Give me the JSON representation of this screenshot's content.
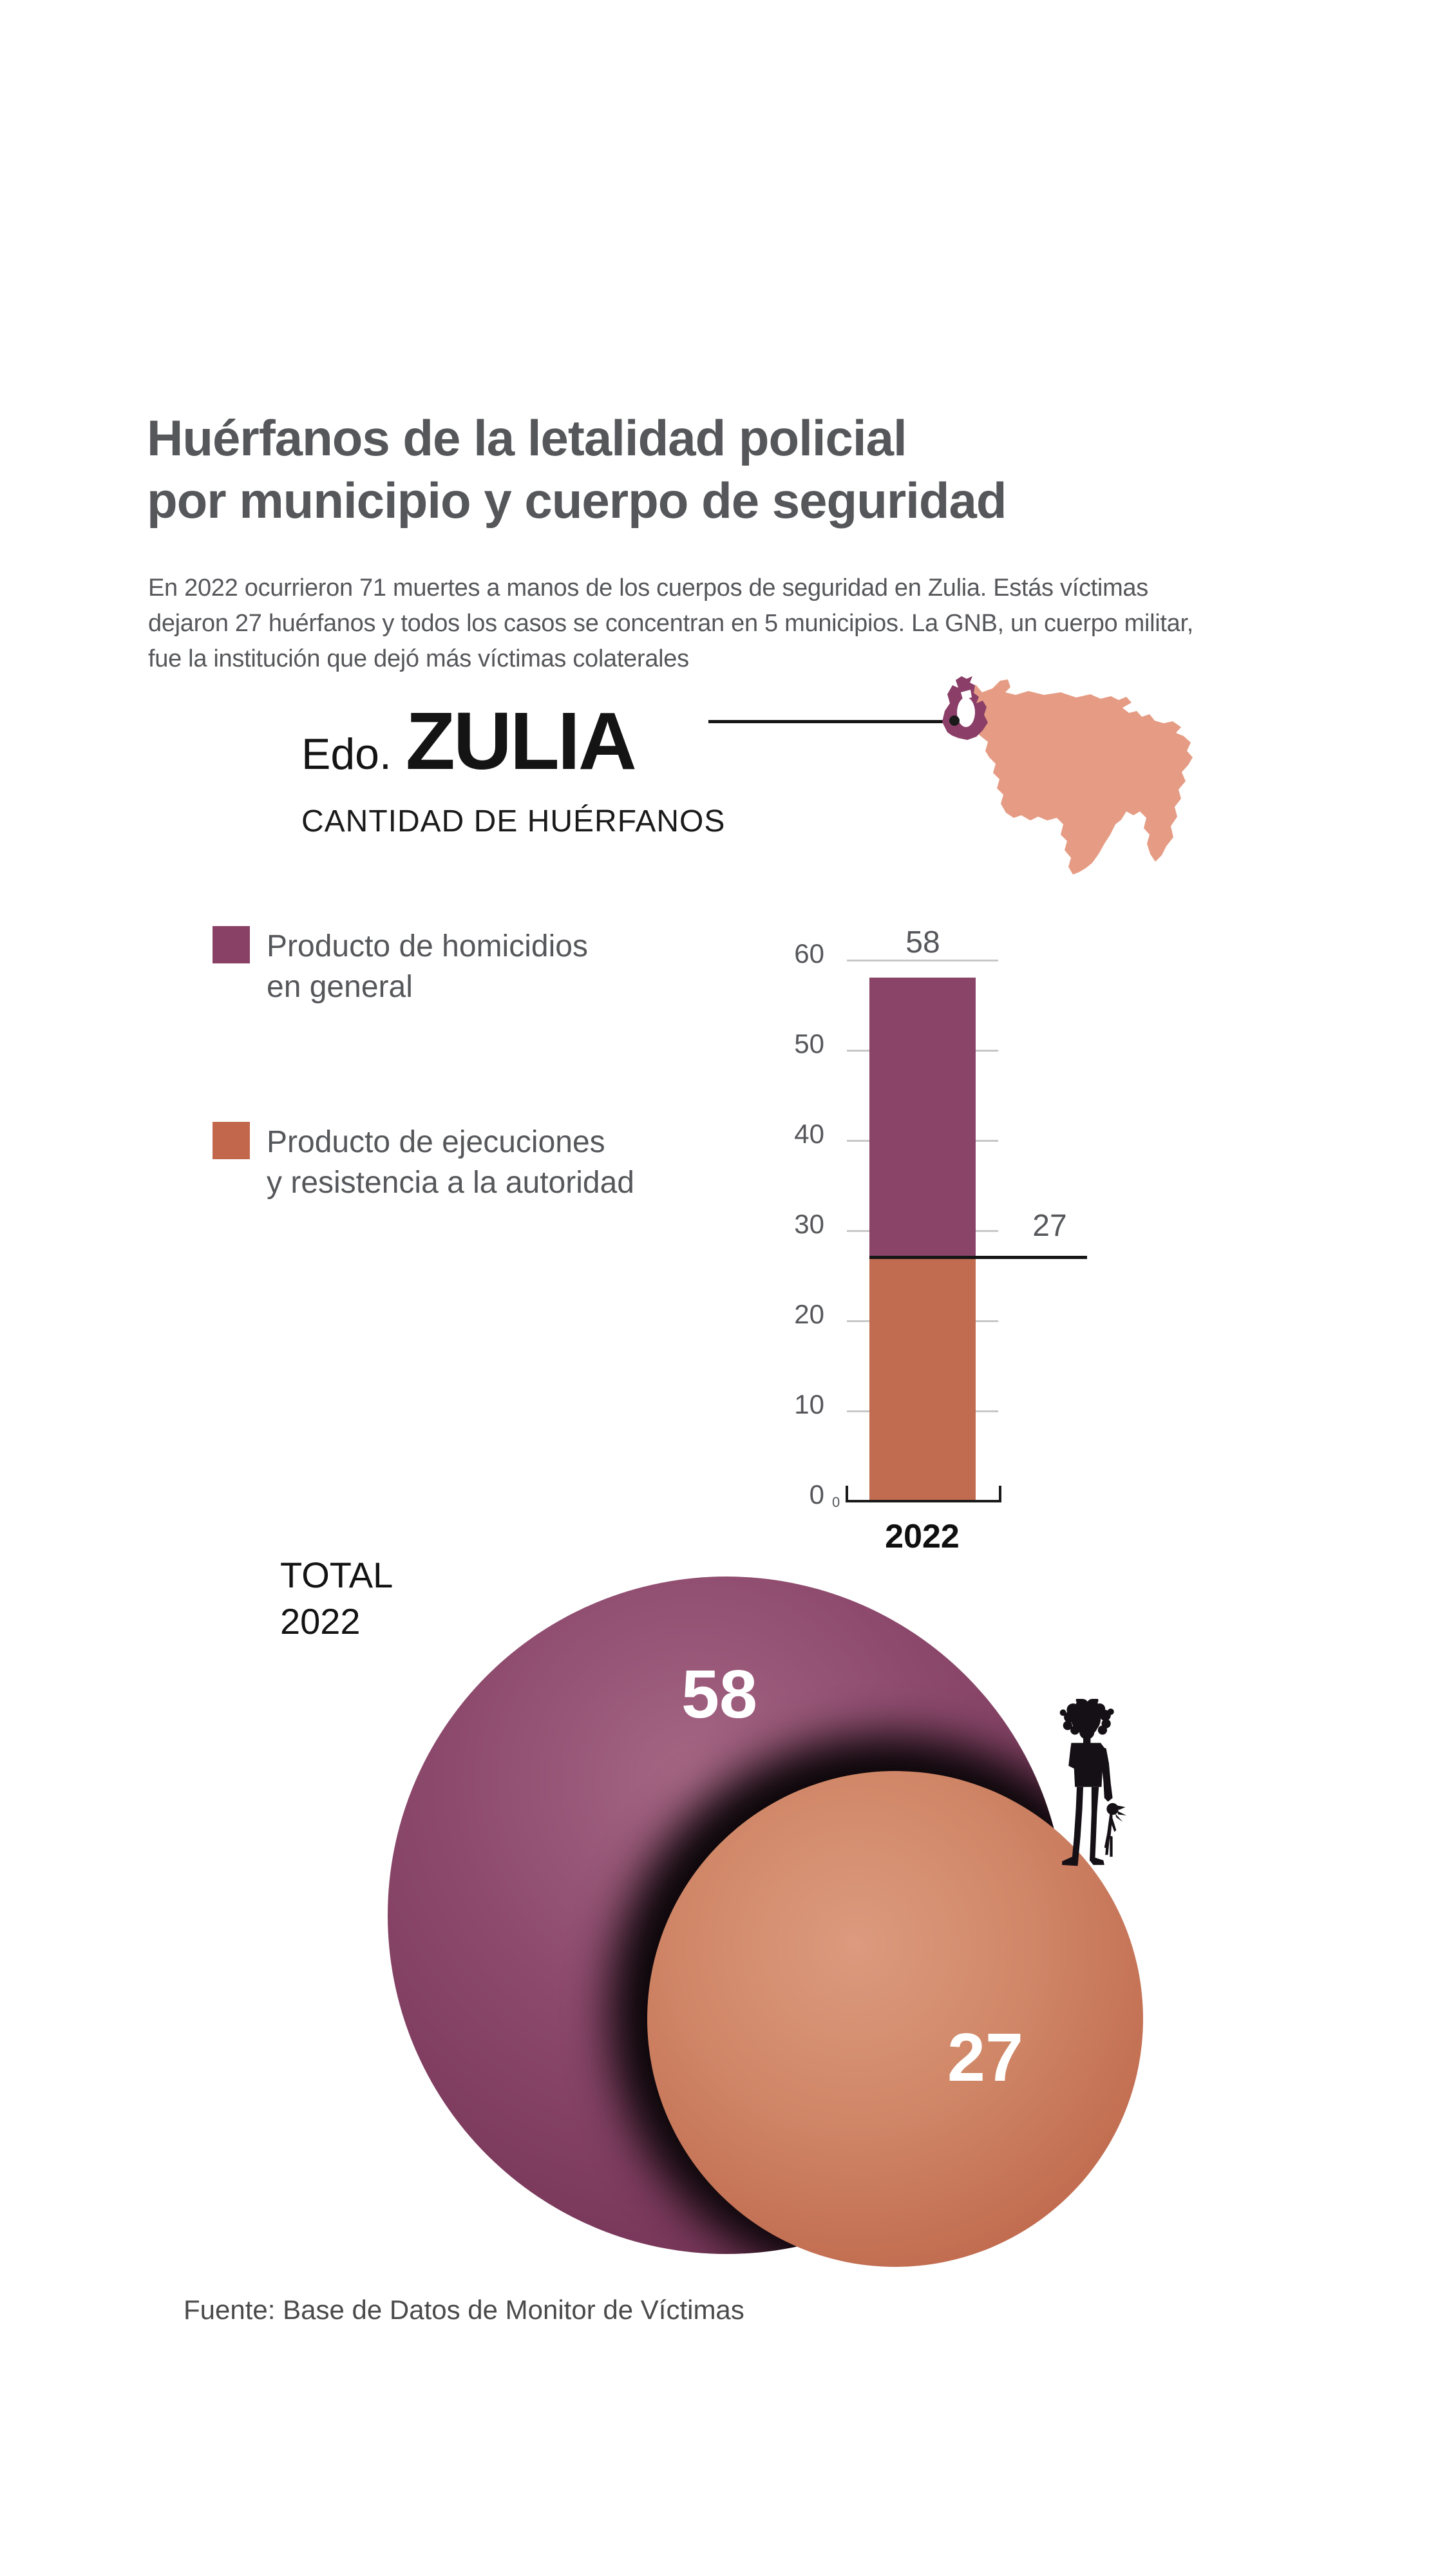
{
  "header": {
    "title": "Huérfanos de la letalidad policial\npor municipio y cuerpo de seguridad",
    "subtitle": "En 2022 ocurrieron 71 muertes a manos de los cuerpos de seguridad en Zulia. Estás víctimas\ndejaron 27 huérfanos y todos los casos se concentran en 5 municipios. La GNB, un cuerpo militar,\nfue la institución que dejó más víctimas colaterales"
  },
  "state": {
    "prefix": "Edo.",
    "name": "ZULIA",
    "caption": "CANTIDAD DE HUÉRFANOS"
  },
  "legend": {
    "items": [
      {
        "label": "Producto de homicidios\nen general",
        "color": "#8a4166"
      },
      {
        "label": "Producto de ejecuciones\ny resistencia a la autoridad",
        "color": "#c2674c"
      }
    ]
  },
  "bar_chart": {
    "total_label": "58",
    "line_label": "27",
    "x_label": "2022",
    "origin_label": "0",
    "colors": {
      "homicidios_segment": "#8a4467",
      "ejecuciones_segment": "#c16c50",
      "gridline": "#c7c7c7",
      "reference_line": "#161616",
      "axis": "#1a1a1a"
    }
  },
  "bubble_chart": {
    "title": "TOTAL\n2022",
    "total_label": "58",
    "subset_label": "27",
    "colors": {
      "total_circle": "#824063",
      "subset_circle": "#c9775b",
      "shadow_ring": "#0a0508"
    }
  },
  "map": {
    "colors": {
      "country": "#e69c84",
      "highlighted_state": "#8a3e68",
      "lake": "#ffffff",
      "marker": "#1a1a1a"
    }
  },
  "icons": {
    "map": "venezuela-map",
    "map_marker": "zulia-location-dot",
    "figure": "child-holding-doll-silhouette"
  },
  "footer": {
    "source": "Fuente: Base de Datos de Monitor de Víctimas"
  },
  "chart_data": [
    {
      "type": "bar",
      "subtype": "stacked",
      "title": "Edo. ZULIA — CANTIDAD DE HUÉRFANOS",
      "categories": [
        "2022"
      ],
      "series": [
        {
          "name": "Producto de ejecuciones y resistencia a la autoridad",
          "color": "#c16c50",
          "values": [
            27
          ]
        },
        {
          "name": "Producto de homicidios en general",
          "color": "#8a4467",
          "values": [
            31
          ]
        }
      ],
      "totals": [
        58
      ],
      "annotations": [
        {
          "text": "58",
          "meaning": "total de huérfanos 2022"
        },
        {
          "text": "27",
          "meaning": "huérfanos producto de ejecuciones y resistencia a la autoridad"
        }
      ],
      "ylim": [
        0,
        60
      ],
      "yticks": [
        0,
        10,
        20,
        30,
        40,
        50,
        60
      ],
      "grid": true,
      "legend_position": "left"
    },
    {
      "type": "bubble",
      "title": "TOTAL 2022",
      "points": [
        {
          "label": "58",
          "value": 58,
          "name": "Producto de homicidios en general",
          "color": "#824063"
        },
        {
          "label": "27",
          "value": 27,
          "name": "Producto de ejecuciones y resistencia a la autoridad",
          "color": "#c9775b"
        }
      ]
    }
  ]
}
